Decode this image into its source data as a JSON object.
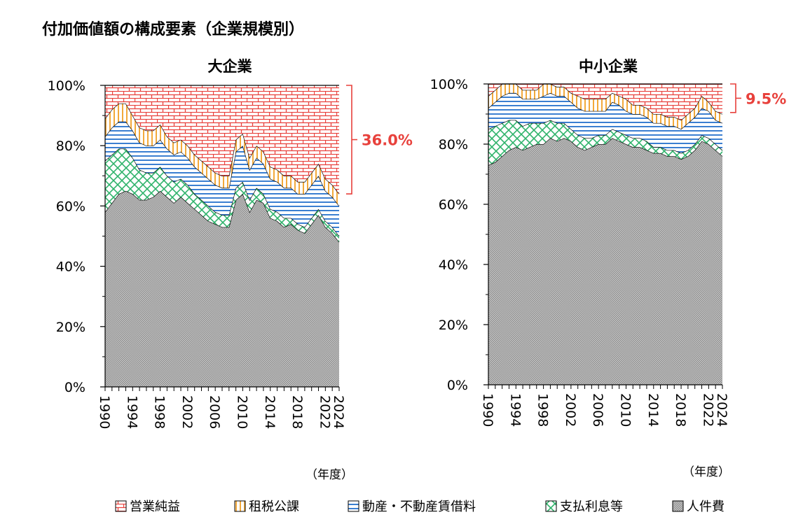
{
  "title": "付加価値額の構成要素（企業規模別）",
  "xunit": "（年度）",
  "colors": {
    "eigyo": "#e8413c",
    "sozei": "#f2a93b",
    "fudosan": "#3b7fd1",
    "shiharai": "#2fb36b",
    "jinken": "#8c8c8c",
    "annotation": "#e8413c"
  },
  "legend": [
    {
      "key": "eigyo",
      "label": "営業純益"
    },
    {
      "key": "sozei",
      "label": "租税公課"
    },
    {
      "key": "fudosan",
      "label": "動産・不動産賃借料"
    },
    {
      "key": "shiharai",
      "label": "支払利息等"
    },
    {
      "key": "jinken",
      "label": "人件費"
    }
  ],
  "chart_data": [
    {
      "type": "area",
      "stacked": true,
      "title": "大企業",
      "x": [
        1990,
        1991,
        1992,
        1993,
        1994,
        1995,
        1996,
        1997,
        1998,
        1999,
        2000,
        2001,
        2002,
        2003,
        2004,
        2005,
        2006,
        2007,
        2008,
        2009,
        2010,
        2011,
        2012,
        2013,
        2014,
        2015,
        2016,
        2017,
        2018,
        2019,
        2020,
        2021,
        2022,
        2023,
        2024
      ],
      "xticks": [
        "1990",
        "1994",
        "1998",
        "2002",
        "2006",
        "2010",
        "2014",
        "2018",
        "2022",
        "2024"
      ],
      "yticks": [
        "0%",
        "20%",
        "40%",
        "60%",
        "80%",
        "100%"
      ],
      "ylim": [
        0,
        100
      ],
      "annotation": "36.0%",
      "annotation_range": [
        64.0,
        100
      ],
      "series": [
        {
          "key": "jinken",
          "name": "人件費",
          "values": [
            58,
            61,
            64,
            65,
            64,
            62,
            62,
            63,
            65,
            63,
            61,
            63,
            61,
            59,
            57,
            55,
            54,
            53,
            53,
            62,
            64,
            58,
            62,
            61,
            56,
            55,
            53,
            54,
            52,
            51,
            54,
            57,
            53,
            51,
            48
          ]
        },
        {
          "key": "shiharai",
          "name": "支払利息等",
          "values": [
            17,
            16,
            15,
            14,
            12,
            10,
            9,
            8,
            8,
            7,
            7,
            6,
            6,
            5,
            5,
            5,
            4,
            4,
            4,
            4,
            4,
            4,
            4,
            3,
            3,
            3,
            3,
            2,
            2,
            2,
            2,
            2,
            2,
            2,
            2
          ]
        },
        {
          "key": "fudosan",
          "name": "動産・不動産賃借料",
          "values": [
            8,
            9,
            9,
            9,
            9,
            9,
            9,
            9,
            9,
            9,
            9,
            9,
            9,
            9,
            9,
            9,
            9,
            9,
            9,
            12,
            12,
            10,
            10,
            10,
            10,
            10,
            10,
            10,
            10,
            11,
            11,
            11,
            10,
            10,
            10
          ]
        },
        {
          "key": "sozei",
          "name": "租税公課",
          "values": [
            6,
            6,
            6,
            6,
            5,
            5,
            5,
            5,
            5,
            4,
            4,
            4,
            4,
            4,
            4,
            4,
            4,
            4,
            4,
            4,
            4,
            4,
            4,
            4,
            4,
            4,
            4,
            4,
            4,
            4,
            4,
            4,
            4,
            4,
            4
          ]
        },
        {
          "key": "eigyo",
          "name": "営業純益",
          "values": [
            11,
            8,
            6,
            6,
            10,
            14,
            15,
            15,
            13,
            17,
            19,
            18,
            20,
            23,
            25,
            27,
            29,
            30,
            30,
            18,
            16,
            24,
            20,
            22,
            27,
            28,
            30,
            30,
            32,
            32,
            29,
            26,
            31,
            33,
            36
          ]
        }
      ]
    },
    {
      "type": "area",
      "stacked": true,
      "title": "中小企業",
      "x": [
        1990,
        1991,
        1992,
        1993,
        1994,
        1995,
        1996,
        1997,
        1998,
        1999,
        2000,
        2001,
        2002,
        2003,
        2004,
        2005,
        2006,
        2007,
        2008,
        2009,
        2010,
        2011,
        2012,
        2013,
        2014,
        2015,
        2016,
        2017,
        2018,
        2019,
        2020,
        2021,
        2022,
        2023,
        2024
      ],
      "xticks": [
        "1990",
        "1994",
        "1998",
        "2002",
        "2006",
        "2010",
        "2014",
        "2018",
        "2022",
        "2024"
      ],
      "yticks": [
        "0%",
        "20%",
        "40%",
        "60%",
        "80%",
        "100%"
      ],
      "ylim": [
        0,
        100
      ],
      "annotation": "9.5%",
      "annotation_range": [
        90.5,
        100
      ],
      "series": [
        {
          "key": "jinken",
          "name": "人件費",
          "values": [
            73,
            74,
            76,
            78,
            79,
            78,
            79,
            80,
            80,
            82,
            81,
            82,
            81,
            79,
            78,
            79,
            80,
            80,
            82,
            81,
            80,
            79,
            79,
            78,
            77,
            77,
            76,
            76,
            75,
            76,
            78,
            81,
            80,
            78,
            76
          ]
        },
        {
          "key": "shiharai",
          "name": "支払利息等",
          "values": [
            12,
            12,
            11,
            10,
            9,
            8,
            8,
            7,
            7,
            6,
            6,
            5,
            4,
            4,
            4,
            3,
            3,
            3,
            3,
            3,
            3,
            3,
            3,
            3,
            2,
            2,
            2,
            2,
            2,
            2,
            2,
            2,
            2,
            2,
            2
          ]
        },
        {
          "key": "fudosan",
          "name": "動産・不動産賃借料",
          "values": [
            7,
            8,
            9,
            9,
            9,
            9,
            8,
            8,
            9,
            9,
            9,
            9,
            9,
            9,
            9,
            9,
            8,
            8,
            9,
            9,
            8,
            8,
            8,
            8,
            8,
            8,
            8,
            8,
            8,
            9,
            9,
            9,
            9,
            8,
            9
          ]
        },
        {
          "key": "sozei",
          "name": "租税公課",
          "values": [
            4,
            4,
            4,
            3,
            3,
            3,
            3,
            3,
            4,
            3,
            3,
            3,
            3,
            4,
            4,
            4,
            4,
            4,
            3,
            3,
            4,
            3,
            3,
            3,
            3,
            3,
            3,
            3,
            3,
            3,
            3,
            4,
            3,
            3,
            3
          ]
        },
        {
          "key": "eigyo",
          "name": "営業純益",
          "values": [
            4,
            2,
            0,
            0,
            0,
            2,
            2,
            2,
            0,
            0,
            1,
            1,
            3,
            4,
            5,
            5,
            5,
            5,
            3,
            4,
            5,
            7,
            7,
            8,
            10,
            10,
            11,
            11,
            12,
            10,
            8,
            4,
            6,
            9,
            10
          ]
        }
      ]
    }
  ]
}
